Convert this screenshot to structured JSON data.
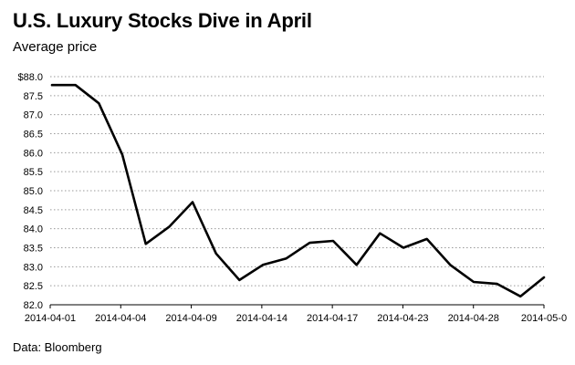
{
  "header": {
    "title": "U.S. Luxury Stocks Dive in April",
    "subtitle": "Average price"
  },
  "footer": {
    "source": "Data: Bloomberg"
  },
  "chart_data": {
    "type": "line",
    "title": "U.S. Luxury Stocks Dive in April",
    "subtitle": "Average price",
    "xlabel": "",
    "ylabel": "",
    "x_tick_labels": [
      "2014-04-01",
      "2014-04-04",
      "2014-04-09",
      "2014-04-14",
      "2014-04-17",
      "2014-04-23",
      "2014-04-28",
      "2014-05-0"
    ],
    "y_tick_labels": [
      "$88.0",
      "87.5",
      "87.0",
      "86.5",
      "86.0",
      "85.5",
      "85.0",
      "84.5",
      "84.0",
      "83.5",
      "83.0",
      "82.5",
      "82.0"
    ],
    "ylim": [
      82.0,
      88.0
    ],
    "grid": "horizontal-dotted",
    "line_color": "#000000",
    "series": [
      {
        "x": [
          "2014-04-01",
          "2014-04-02",
          "2014-04-03",
          "2014-04-04",
          "2014-04-07",
          "2014-04-08",
          "2014-04-09",
          "2014-04-10",
          "2014-04-11",
          "2014-04-14",
          "2014-04-15",
          "2014-04-16",
          "2014-04-17",
          "2014-04-21",
          "2014-04-22",
          "2014-04-23",
          "2014-04-24",
          "2014-04-25",
          "2014-04-28",
          "2014-04-29",
          "2014-04-30",
          "2014-05-01"
        ],
        "values": [
          87.78,
          87.78,
          87.3,
          85.95,
          83.6,
          84.05,
          84.7,
          83.35,
          82.65,
          83.05,
          83.22,
          83.63,
          83.68,
          83.05,
          83.88,
          83.5,
          83.73,
          83.05,
          82.6,
          82.55,
          82.22,
          82.72
        ]
      }
    ]
  }
}
